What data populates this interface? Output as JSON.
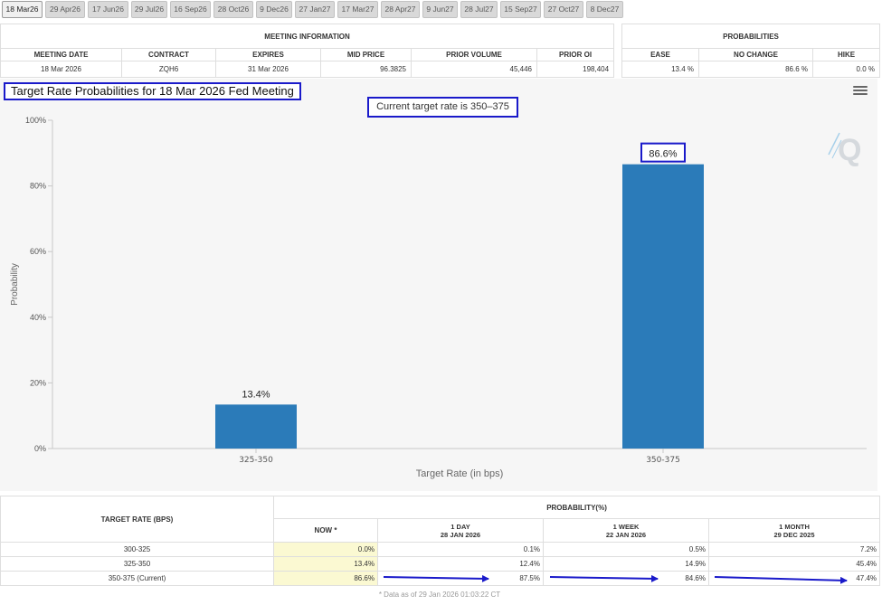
{
  "tabs": [
    "18 Mar26",
    "29 Apr26",
    "17 Jun26",
    "29 Jul26",
    "16 Sep26",
    "28 Oct26",
    "9 Dec26",
    "27 Jan27",
    "17 Mar27",
    "28 Apr27",
    "9 Jun27",
    "28 Jul27",
    "15 Sep27",
    "27 Oct27",
    "8 Dec27"
  ],
  "meeting_info": {
    "heading": "MEETING INFORMATION",
    "headers": [
      "MEETING DATE",
      "CONTRACT",
      "EXPIRES",
      "MID PRICE",
      "PRIOR VOLUME",
      "PRIOR OI"
    ],
    "values": [
      "18 Mar 2026",
      "ZQH6",
      "31 Mar 2026",
      "96.3825",
      "45,446",
      "198,404"
    ]
  },
  "probabilities": {
    "heading": "PROBABILITIES",
    "headers": [
      "EASE",
      "NO CHANGE",
      "HIKE"
    ],
    "values": [
      "13.4 %",
      "86.6 %",
      "0.0 %"
    ]
  },
  "chart": {
    "title": "Target Rate Probabilities for 18 Mar 2026 Fed Meeting",
    "subtitle": "Current target rate is 350–375",
    "menu_icon": "hamburger-menu-icon",
    "logo_icon": "q-logo-icon"
  },
  "chart_data": {
    "type": "bar",
    "title": "Target Rate Probabilities for 18 Mar 2026 Fed Meeting",
    "subtitle": "Current target rate is 350–375",
    "categories": [
      "325-350",
      "350-375"
    ],
    "values": [
      13.4,
      86.6
    ],
    "data_labels": [
      "13.4%",
      "86.6%"
    ],
    "xlabel": "Target Rate (in bps)",
    "ylabel": "Probability",
    "ylim": [
      0,
      100
    ],
    "yticks": [
      0,
      20,
      40,
      60,
      80,
      100
    ],
    "ytick_labels": [
      "0%",
      "20%",
      "40%",
      "60%",
      "80%",
      "100%"
    ],
    "grid": false,
    "bar_color": "#2b7bb9"
  },
  "rate_table": {
    "col_target": "TARGET RATE (BPS)",
    "prob_heading": "PROBABILITY(%)",
    "periods": [
      {
        "label": "NOW *",
        "date": ""
      },
      {
        "label": "1 DAY",
        "date": "28 JAN 2026"
      },
      {
        "label": "1 WEEK",
        "date": "22 JAN 2026"
      },
      {
        "label": "1 MONTH",
        "date": "29 DEC 2025"
      }
    ],
    "rows": [
      {
        "rate": "300-325",
        "values": [
          "0.0%",
          "0.1%",
          "0.5%",
          "7.2%"
        ]
      },
      {
        "rate": "325-350",
        "values": [
          "13.4%",
          "12.4%",
          "14.9%",
          "45.4%"
        ]
      },
      {
        "rate": "350-375 (Current)",
        "values": [
          "86.6%",
          "87.5%",
          "84.6%",
          "47.4%"
        ]
      }
    ],
    "note": "* Data as of 29 Jan 2026 01:03:22 CT"
  },
  "colors": {
    "highlight_box": "#1a1aca",
    "bar": "#2b7bb9",
    "now_column": "#fbf9d2"
  }
}
